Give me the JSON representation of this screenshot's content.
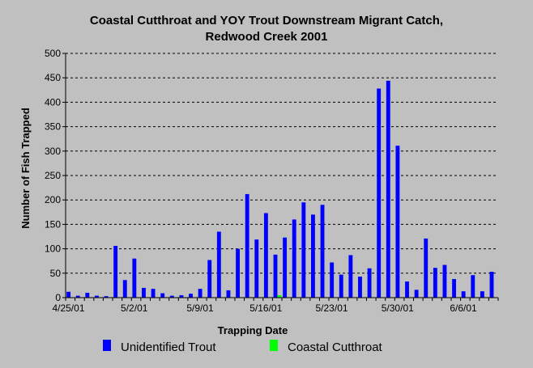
{
  "chart_data": {
    "type": "bar",
    "title": "Coastal Cutthroat and YOY Trout Downstream Migrant Catch,",
    "subtitle": "Redwood Creek 2001",
    "xlabel": "Trapping Date",
    "ylabel": "Number of Fish Trapped",
    "ylim": [
      0,
      500
    ],
    "yticks": [
      "0",
      "50",
      "100",
      "150",
      "200",
      "250",
      "300",
      "350",
      "400",
      "450",
      "500"
    ],
    "xtick_labels": [
      {
        "label": "4/25/01",
        "day": 0
      },
      {
        "label": "5/2/01",
        "day": 7
      },
      {
        "label": "5/9/01",
        "day": 14
      },
      {
        "label": "5/16/01",
        "day": 21
      },
      {
        "label": "5/23/01",
        "day": 28
      },
      {
        "label": "5/30/01",
        "day": 35
      },
      {
        "label": "6/6/01",
        "day": 42
      }
    ],
    "grid": true,
    "legend_position": "bottom",
    "series": [
      {
        "name": "Unidentified Trout",
        "color": "#0000ff",
        "values": [
          12,
          4,
          10,
          4,
          3,
          106,
          36,
          80,
          20,
          18,
          9,
          4,
          5,
          8,
          18,
          77,
          135,
          15,
          100,
          212,
          119,
          173,
          88,
          123,
          160,
          195,
          170,
          190,
          72,
          47,
          87,
          43,
          60,
          428,
          444,
          311,
          33,
          16,
          121,
          61,
          67,
          38,
          13,
          46,
          13,
          53
        ]
      },
      {
        "name": "Coastal Cutthroat",
        "color": "#00ff00",
        "values": [
          0,
          0,
          0,
          0,
          0,
          0,
          0,
          0,
          0,
          0,
          0,
          0,
          0,
          0,
          0,
          0,
          0,
          0,
          0,
          0,
          0,
          0,
          5,
          0,
          0,
          0,
          0,
          0,
          0,
          0,
          0,
          0,
          0,
          0,
          0,
          0,
          0,
          0,
          0,
          0,
          0,
          0,
          0,
          0,
          0,
          0
        ]
      }
    ]
  }
}
